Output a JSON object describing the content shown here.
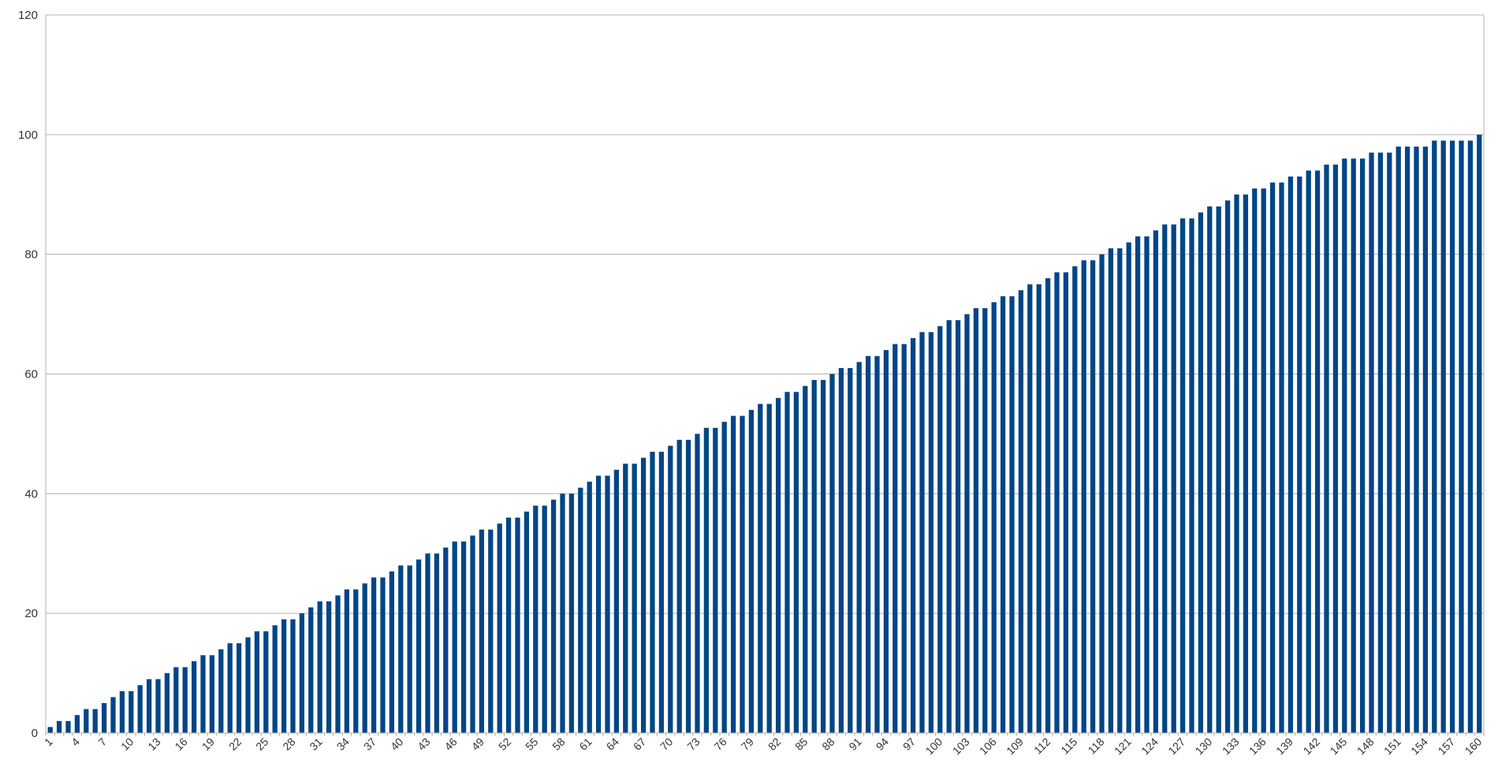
{
  "chart_data": {
    "type": "bar",
    "title": "",
    "xlabel": "",
    "ylabel": "",
    "ylim": [
      0,
      120
    ],
    "yticks": [
      0,
      20,
      40,
      60,
      80,
      100,
      120
    ],
    "grid": true,
    "legend": "none",
    "bar_color": "#004586",
    "categories": [
      "1",
      "2",
      "3",
      "4",
      "5",
      "6",
      "7",
      "8",
      "9",
      "10",
      "11",
      "12",
      "13",
      "14",
      "15",
      "16",
      "17",
      "18",
      "19",
      "20",
      "21",
      "22",
      "23",
      "24",
      "25",
      "26",
      "27",
      "28",
      "29",
      "30",
      "31",
      "32",
      "33",
      "34",
      "35",
      "36",
      "37",
      "38",
      "39",
      "40",
      "41",
      "42",
      "43",
      "44",
      "45",
      "46",
      "47",
      "48",
      "49",
      "50",
      "51",
      "52",
      "53",
      "54",
      "55",
      "56",
      "57",
      "58",
      "59",
      "60",
      "61",
      "62",
      "63",
      "64",
      "65",
      "66",
      "67",
      "68",
      "69",
      "70",
      "71",
      "72",
      "73",
      "74",
      "75",
      "76",
      "77",
      "78",
      "79",
      "80",
      "81",
      "82",
      "83",
      "84",
      "85",
      "86",
      "87",
      "88",
      "89",
      "90",
      "91",
      "92",
      "93",
      "94",
      "95",
      "96",
      "97",
      "98",
      "99",
      "100",
      "101",
      "102",
      "103",
      "104",
      "105",
      "106",
      "107",
      "108",
      "109",
      "110",
      "111",
      "112",
      "113",
      "114",
      "115",
      "116",
      "117",
      "118",
      "119",
      "120",
      "121",
      "122",
      "123",
      "124",
      "125",
      "126",
      "127",
      "128",
      "129",
      "130",
      "131",
      "132",
      "133",
      "134",
      "135",
      "136",
      "137",
      "138",
      "139",
      "140",
      "141",
      "142",
      "143",
      "144",
      "145",
      "146",
      "147",
      "148",
      "149",
      "150",
      "151",
      "152",
      "153",
      "154",
      "155",
      "156",
      "157",
      "158",
      "159",
      "160"
    ],
    "visible_tick_labels": [
      "1",
      "4",
      "7",
      "10",
      "13",
      "16",
      "19",
      "22",
      "25",
      "28",
      "31",
      "34",
      "37",
      "40",
      "43",
      "46",
      "49",
      "52",
      "55",
      "58",
      "61",
      "64",
      "67",
      "70",
      "73",
      "76",
      "79",
      "82",
      "85",
      "88",
      "91",
      "94",
      "97",
      "100",
      "103",
      "106",
      "109",
      "112",
      "115",
      "118",
      "121",
      "124",
      "127",
      "130",
      "133",
      "136",
      "139",
      "142",
      "145",
      "148",
      "151",
      "154",
      "157",
      "160"
    ],
    "values": [
      1,
      2,
      2,
      3,
      4,
      4,
      5,
      6,
      7,
      7,
      8,
      9,
      9,
      10,
      11,
      11,
      12,
      13,
      13,
      14,
      15,
      15,
      16,
      17,
      17,
      18,
      19,
      19,
      20,
      21,
      22,
      22,
      23,
      24,
      24,
      25,
      26,
      26,
      27,
      28,
      28,
      29,
      30,
      30,
      31,
      32,
      32,
      33,
      34,
      34,
      35,
      36,
      36,
      37,
      38,
      38,
      39,
      40,
      40,
      41,
      42,
      43,
      43,
      44,
      45,
      45,
      46,
      47,
      47,
      48,
      49,
      49,
      50,
      51,
      51,
      52,
      53,
      53,
      54,
      55,
      55,
      56,
      57,
      57,
      58,
      59,
      59,
      60,
      61,
      61,
      62,
      63,
      63,
      64,
      65,
      65,
      66,
      67,
      67,
      68,
      69,
      69,
      70,
      71,
      71,
      72,
      73,
      73,
      74,
      75,
      75,
      76,
      77,
      77,
      78,
      79,
      79,
      80,
      81,
      81,
      82,
      83,
      83,
      84,
      85,
      85,
      86,
      86,
      87,
      88,
      88,
      89,
      90,
      90,
      91,
      91,
      92,
      92,
      93,
      93,
      94,
      94,
      95,
      95,
      96,
      96,
      96,
      97,
      97,
      97,
      98,
      98,
      98,
      98,
      99,
      99,
      99,
      99,
      99,
      100
    ]
  }
}
